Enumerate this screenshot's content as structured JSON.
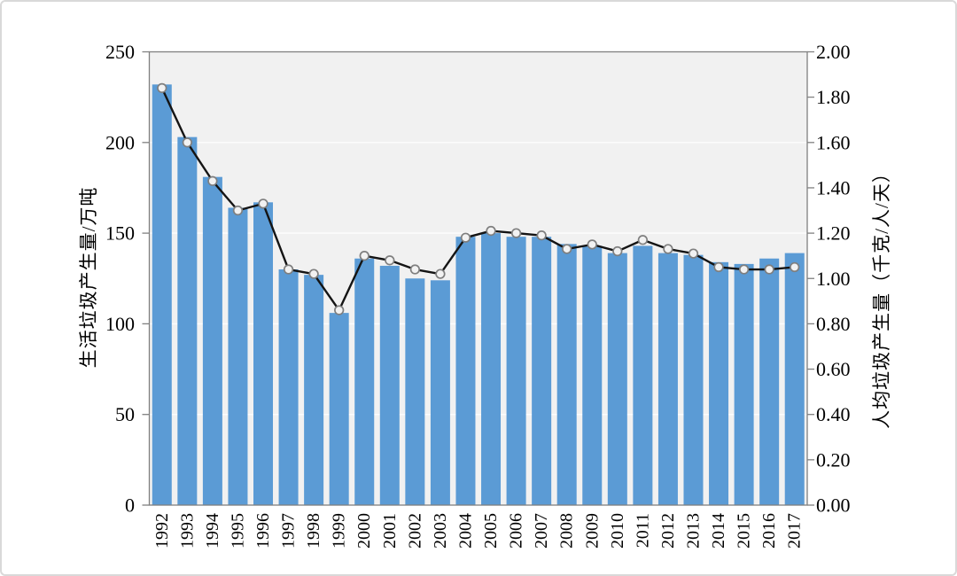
{
  "chart_data": {
    "type": "combo_bar_line",
    "title": "",
    "categories": [
      "1992",
      "1993",
      "1994",
      "1995",
      "1996",
      "1997",
      "1998",
      "1999",
      "2000",
      "2001",
      "2002",
      "2003",
      "2004",
      "2005",
      "2006",
      "2007",
      "2008",
      "2009",
      "2010",
      "2011",
      "2012",
      "2013",
      "2014",
      "2015",
      "2016",
      "2017"
    ],
    "series": [
      {
        "name": "生活垃圾产生量",
        "type": "bar",
        "y_axis": "left",
        "unit": "万吨",
        "color": "#5b9bd5",
        "values": [
          232,
          203,
          181,
          164,
          167,
          130,
          127,
          106,
          136,
          132,
          125,
          124,
          148,
          150,
          148,
          148,
          144,
          143,
          139,
          143,
          139,
          138,
          134,
          133,
          136,
          139
        ]
      },
      {
        "name": "人均垃圾产生量",
        "type": "line",
        "y_axis": "right",
        "unit": "千克/人/天",
        "color": "#141414",
        "marker_fill": "#f2f2f2",
        "marker_stroke": "#7f7f7f",
        "values": [
          1.84,
          1.6,
          1.43,
          1.3,
          1.33,
          1.04,
          1.02,
          0.86,
          1.1,
          1.08,
          1.04,
          1.02,
          1.18,
          1.21,
          1.2,
          1.19,
          1.13,
          1.15,
          1.12,
          1.17,
          1.13,
          1.11,
          1.05,
          1.04,
          1.04,
          1.05
        ]
      }
    ],
    "left_axis": {
      "title": "生活垃圾产生量/万吨",
      "min": 0,
      "max": 250,
      "tick_step": 50,
      "tick_labels": [
        "0",
        "50",
        "100",
        "150",
        "200",
        "250"
      ]
    },
    "right_axis": {
      "title": "人均垃圾产生量（千克/人/天）",
      "min": 0,
      "max": 2.0,
      "tick_step": 0.2,
      "tick_labels": [
        "0.00",
        "0.20",
        "0.40",
        "0.60",
        "0.80",
        "1.00",
        "1.20",
        "1.40",
        "1.60",
        "1.80",
        "2.00"
      ]
    },
    "x_axis": {
      "tick_labels": [
        "1992",
        "1993",
        "1994",
        "1995",
        "1996",
        "1997",
        "1998",
        "1999",
        "2000",
        "2001",
        "2002",
        "2003",
        "2004",
        "2005",
        "2006",
        "2007",
        "2008",
        "2009",
        "2010",
        "2011",
        "2012",
        "2013",
        "2014",
        "2015",
        "2016",
        "2017"
      ]
    },
    "legend": "none",
    "grid": {
      "show": true,
      "left_interval": 50,
      "color": "#ffffff"
    },
    "plot_background": "#f1f1f1",
    "axis_color": "#808080",
    "text_color": "#000000"
  }
}
